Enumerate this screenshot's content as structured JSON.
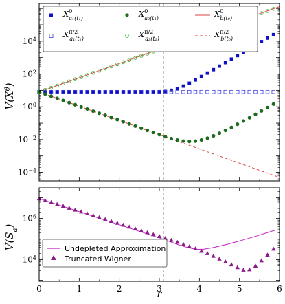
{
  "chart_data": [
    {
      "type": "scatter",
      "xlabel": "",
      "ylabel": "V(Xθ)",
      "yscale": "log",
      "xlim": [
        0,
        6
      ],
      "ylim": [
        3e-05,
        2000000
      ],
      "x_ticks": [
        0,
        1,
        2,
        3,
        4,
        5,
        6
      ],
      "y_ticks": [
        {
          "value": 0.0001,
          "base": "10",
          "exp": "−4"
        },
        {
          "value": 0.01,
          "base": "10",
          "exp": "−2"
        },
        {
          "value": 1,
          "base": "10",
          "exp": "0"
        },
        {
          "value": 100,
          "base": "10",
          "exp": "2"
        },
        {
          "value": 10000,
          "base": "10",
          "exp": "4"
        }
      ],
      "vline_x": 3.1,
      "legend_position": "top",
      "series": [
        {
          "name": "X^0 a1(t1)",
          "label_main": "X",
          "label_sup": "0",
          "label_sub": "a₁(t₁)",
          "marker": "filled-square",
          "color": "#1010c8",
          "x": [
            0.0,
            0.15,
            0.3,
            0.45,
            0.6,
            0.75,
            0.9,
            1.05,
            1.2,
            1.35,
            1.5,
            1.65,
            1.8,
            1.95,
            2.1,
            2.25,
            2.4,
            2.55,
            2.7,
            2.85,
            3.0,
            3.15,
            3.3,
            3.45,
            3.6,
            3.75,
            3.9,
            4.05,
            4.2,
            4.35,
            4.5,
            4.65,
            4.8,
            4.95,
            5.1,
            5.25,
            5.4,
            5.55,
            5.7,
            5.85
          ],
          "y": [
            8.0,
            8.0,
            8.0,
            8.0,
            8.0,
            8.0,
            8.0,
            8.0,
            8.0,
            8.0,
            8.0,
            8.0,
            8.0,
            8.0,
            8.0,
            8.0,
            8.0,
            8.0,
            8.01,
            8.05,
            8.25,
            8.6,
            10.1,
            13.0,
            18.3,
            27.2,
            43.1,
            70.8,
            114,
            184,
            300,
            490,
            810,
            1320,
            2150,
            3520,
            5760,
            9400,
            15400,
            25200
          ]
        },
        {
          "name": "X^(π/2) a1(t1)",
          "label_main": "X",
          "label_sup": "π/2",
          "label_sub": "a₁(t₁)",
          "marker": "open-square",
          "color": "#4040e0",
          "x": [
            0.0,
            0.15,
            0.3,
            0.45,
            0.6,
            0.75,
            0.9,
            1.05,
            1.2,
            1.35,
            1.5,
            1.65,
            1.8,
            1.95,
            2.1,
            2.25,
            2.4,
            2.55,
            2.7,
            2.85,
            3.0,
            3.15,
            3.3,
            3.45,
            3.6,
            3.75,
            3.9,
            4.05,
            4.2,
            4.35,
            4.5,
            4.65,
            4.8,
            4.95,
            5.1,
            5.25,
            5.4,
            5.55,
            5.7,
            5.85
          ],
          "y": [
            8.0,
            8.0,
            8.0,
            8.0,
            8.0,
            8.0,
            8.0,
            8.0,
            8.0,
            8.0,
            8.0,
            8.0,
            8.0,
            8.0,
            8.0,
            8.0,
            8.0,
            8.0,
            8.0,
            8.0,
            8.0,
            8.0,
            8.0,
            8.0,
            8.0,
            8.0,
            8.0,
            8.0,
            8.0,
            8.0,
            8.0,
            8.0,
            8.0,
            8.0,
            8.0,
            8.0,
            8.0,
            8.0,
            8.0,
            8.0
          ]
        },
        {
          "name": "X^0 a2(t1)",
          "label_main": "X",
          "label_sup": "0",
          "label_sub": "a₂(t₁)",
          "marker": "filled-circle",
          "color": "#1a6b1a",
          "x": [
            0.0,
            0.15,
            0.3,
            0.45,
            0.6,
            0.75,
            0.9,
            1.05,
            1.2,
            1.35,
            1.5,
            1.65,
            1.8,
            1.95,
            2.1,
            2.25,
            2.4,
            2.55,
            2.7,
            2.85,
            3.0,
            3.15,
            3.3,
            3.45,
            3.6,
            3.75,
            3.9,
            4.05,
            4.2,
            4.35,
            4.5,
            4.65,
            4.8,
            4.95,
            5.1,
            5.25,
            5.4,
            5.55,
            5.7,
            5.85
          ],
          "y": [
            8.0,
            5.94,
            4.4,
            3.26,
            2.42,
            1.79,
            1.33,
            0.98,
            0.73,
            0.54,
            0.4,
            0.3,
            0.22,
            0.164,
            0.121,
            0.09,
            0.066,
            0.049,
            0.0363,
            0.027,
            0.02,
            0.015,
            0.0115,
            0.0093,
            0.0081,
            0.0076,
            0.008,
            0.0094,
            0.0122,
            0.0168,
            0.0243,
            0.0362,
            0.0551,
            0.0857,
            0.135,
            0.214,
            0.343,
            0.553,
            0.897,
            1.46
          ]
        },
        {
          "name": "X^(π/2) a2(t1)",
          "label_main": "X",
          "label_sup": "π/2",
          "label_sub": "a₂(t₁)",
          "marker": "open-circle",
          "color": "#2ab02a",
          "x": [
            0.0,
            0.15,
            0.3,
            0.45,
            0.6,
            0.75,
            0.9,
            1.05,
            1.2,
            1.35,
            1.5,
            1.65,
            1.8,
            1.95,
            2.1,
            2.25,
            2.4,
            2.55,
            2.7,
            2.85,
            3.0,
            3.15,
            3.3,
            3.45,
            3.6,
            3.75,
            3.9,
            4.05,
            4.2,
            4.35,
            4.5,
            4.65,
            4.8,
            4.95,
            5.1,
            5.25,
            5.4,
            5.55,
            5.7,
            5.85
          ],
          "y": [
            8.0,
            10.8,
            14.5,
            19.6,
            26.4,
            35.7,
            48.1,
            64.9,
            87.5,
            118,
            159,
            215,
            290,
            391,
            527,
            711,
            960,
            1290,
            1740,
            2350,
            3170,
            4280,
            5770,
            7790,
            10500,
            14200,
            19100,
            25800,
            34800,
            47000,
            63400,
            85500,
            115000,
            156000,
            210000,
            283000,
            382000,
            515000,
            695000,
            938000
          ]
        },
        {
          "name": "X^0 b(t0)",
          "label_main": "X",
          "label_sup": "0",
          "label_sub": "b(t₀)",
          "marker": "solid-line",
          "color": "#e04040",
          "x": [
            0.0,
            1.0,
            2.0,
            3.0,
            4.0,
            5.0,
            6.0
          ],
          "y": [
            8.0,
            59.1,
            437,
            3230,
            23800,
            176000,
            1300000
          ]
        },
        {
          "name": "X^(π/2) b(t0)",
          "label_main": "X",
          "label_sup": "π/2",
          "label_sub": "b(t₀)",
          "marker": "dashed-line",
          "color": "#e04040",
          "x": [
            0.0,
            1.0,
            2.0,
            3.0,
            4.0,
            5.0,
            6.0
          ],
          "y": [
            8.0,
            1.08,
            0.146,
            0.0198,
            0.00268,
            0.000363,
            4.92e-05
          ]
        }
      ]
    },
    {
      "type": "scatter",
      "xlabel": "r",
      "ylabel": "V(Sa)",
      "yscale": "log",
      "xlim": [
        0,
        6
      ],
      "ylim": [
        900,
        30000000
      ],
      "x_ticks": [
        0,
        1,
        2,
        3,
        4,
        5,
        6
      ],
      "y_ticks": [
        {
          "value": 10000,
          "base": "10",
          "exp": "4"
        },
        {
          "value": 1000000,
          "base": "10",
          "exp": "6"
        }
      ],
      "vline_x": 3.1,
      "legend_position": "bottom-left",
      "series": [
        {
          "name": "Undepleted Approximation",
          "marker": "solid-line",
          "color": "#c020c0",
          "x": [
            0.0,
            0.5,
            1.0,
            1.5,
            2.0,
            2.5,
            3.0,
            3.3,
            3.5,
            3.7,
            3.9,
            4.1,
            4.3,
            4.5,
            4.7,
            4.9,
            5.1,
            5.3,
            5.5,
            5.7,
            5.9
          ],
          "y": [
            9000000,
            4350000,
            2100000,
            1010000,
            490000,
            236000,
            114000,
            70000,
            51000,
            39000,
            32000,
            32000,
            37000,
            45000,
            56000,
            71000,
            91000,
            118000,
            155000,
            205000,
            270000
          ]
        },
        {
          "name": "Truncated Wigner",
          "marker": "filled-triangle",
          "color": "#8b1a8b",
          "x": [
            0.0,
            0.15,
            0.3,
            0.45,
            0.6,
            0.75,
            0.9,
            1.05,
            1.2,
            1.35,
            1.5,
            1.65,
            1.8,
            1.95,
            2.1,
            2.25,
            2.4,
            2.55,
            2.7,
            2.85,
            3.0,
            3.15,
            3.3,
            3.45,
            3.6,
            3.75,
            3.9,
            4.05,
            4.2,
            4.35,
            4.5,
            4.65,
            4.8,
            4.95,
            5.1,
            5.25,
            5.4,
            5.55,
            5.7,
            5.85
          ],
          "y": [
            9000000,
            7300000,
            5900000,
            4800000,
            3900000,
            3150000,
            2550000,
            2070000,
            1680000,
            1360000,
            1100000,
            893000,
            724000,
            586000,
            475000,
            385000,
            312000,
            253000,
            205000,
            166000,
            135000,
            109000,
            88000,
            70000,
            55000,
            43000,
            34000,
            26000,
            20000,
            15000,
            11000,
            8000,
            5800,
            4200,
            3200,
            3300,
            5000,
            9000,
            17000,
            33000
          ]
        }
      ]
    }
  ]
}
